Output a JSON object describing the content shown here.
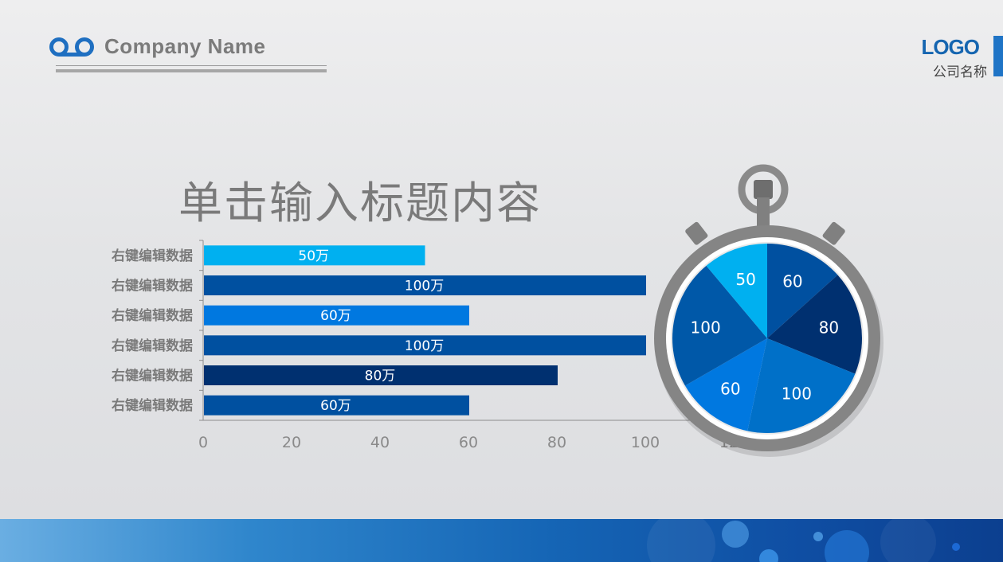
{
  "header": {
    "company_name": "Company Name",
    "logo_text": "LOGO",
    "logo_subtitle": "公司名称"
  },
  "slide_title": "单击输入标题内容",
  "colors": {
    "accent": "#1f74c6",
    "bar_colors": [
      "#00b0f0",
      "#0050a0",
      "#0078e0",
      "#0050a0",
      "#003070",
      "#0050a0"
    ],
    "pie_colors": [
      "#0050a0",
      "#003070",
      "#0070c8",
      "#0078e0",
      "#0058a8",
      "#00b0f0"
    ],
    "footer": "#1565b5"
  },
  "chart_data": [
    {
      "type": "bar",
      "orientation": "horizontal",
      "categories": [
        "右键编辑数据",
        "右键编辑数据",
        "右键编辑数据",
        "右键编辑数据",
        "右键编辑数据",
        "右键编辑数据"
      ],
      "values": [
        50,
        100,
        60,
        100,
        80,
        60
      ],
      "data_labels": [
        "50万",
        "100万",
        "60万",
        "100万",
        "80万",
        "60万"
      ],
      "xlim": [
        0,
        120
      ],
      "x_ticks": [
        "0",
        "20",
        "40",
        "60",
        "80",
        "100",
        "120"
      ],
      "grid": false
    },
    {
      "type": "pie",
      "values": [
        60,
        80,
        100,
        60,
        100,
        50
      ],
      "labels": [
        "60",
        "80",
        "100",
        "60",
        "100",
        "50"
      ],
      "start": "top",
      "direction": "clockwise",
      "frame": "stopwatch"
    }
  ]
}
